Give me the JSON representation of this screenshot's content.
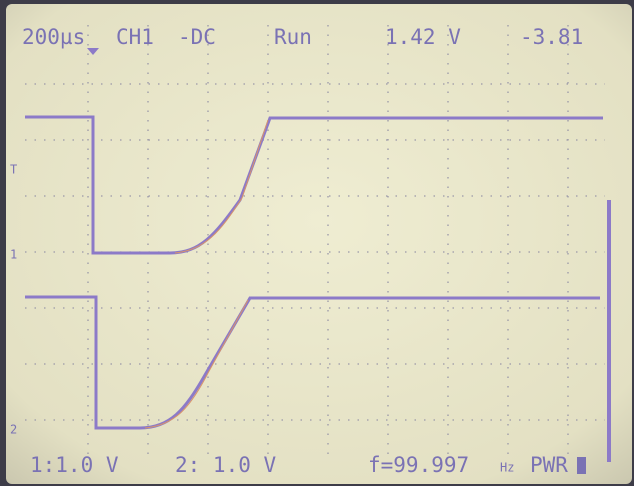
{
  "header": {
    "timebase": "200µs",
    "channel": "CH1",
    "coupling": "-DC",
    "state": "Run",
    "voltage": "1.42 V",
    "offset": "-3.81"
  },
  "markers": {
    "trigger": "T",
    "ch1": "1",
    "ch2": "2"
  },
  "footer": {
    "ch1_scale": "1:1.0 V",
    "ch2_scale": "2: 1.0 V",
    "frequency": "f=99.997",
    "frequency_unit": "Hz",
    "power": "PWR"
  }
}
